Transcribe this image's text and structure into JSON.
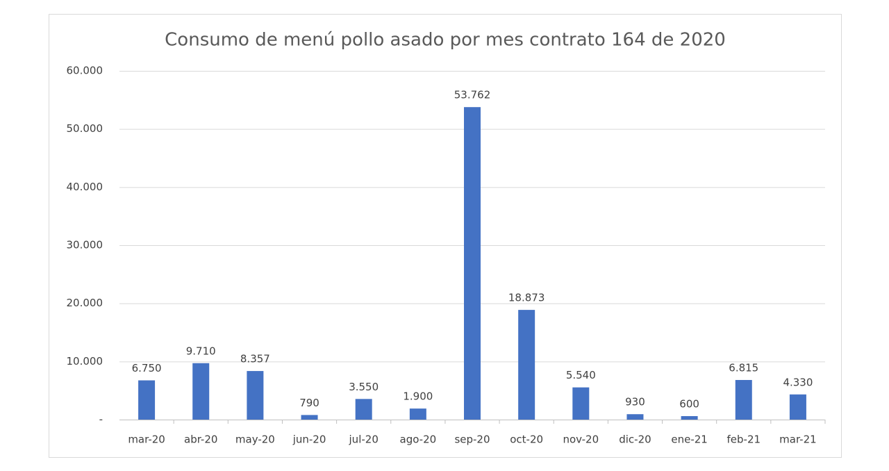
{
  "chart_data": {
    "type": "bar",
    "title": "Consumo de menú pollo asado por mes contrato 164 de 2020",
    "categories": [
      "mar-20",
      "abr-20",
      "may-20",
      "jun-20",
      "jul-20",
      "ago-20",
      "sep-20",
      "oct-20",
      "nov-20",
      "dic-20",
      "ene-21",
      "feb-21",
      "mar-21"
    ],
    "values": [
      6750,
      9710,
      8357,
      790,
      3550,
      1900,
      53762,
      18873,
      5540,
      930,
      600,
      6815,
      4330
    ],
    "value_labels": [
      "6.750",
      "9.710",
      "8.357",
      "790",
      "3.550",
      "1.900",
      "53.762",
      "18.873",
      "5.540",
      "930",
      "600",
      "6.815",
      "4.330"
    ],
    "color": "#4472c4",
    "ylim": [
      0,
      60000
    ],
    "yticks": [
      {
        "value": 0,
        "label": "-"
      },
      {
        "value": 10000,
        "label": "10.000"
      },
      {
        "value": 20000,
        "label": "20.000"
      },
      {
        "value": 30000,
        "label": "30.000"
      },
      {
        "value": 40000,
        "label": "40.000"
      },
      {
        "value": 50000,
        "label": "50.000"
      },
      {
        "value": 60000,
        "label": "60.000"
      }
    ],
    "grid": true
  }
}
